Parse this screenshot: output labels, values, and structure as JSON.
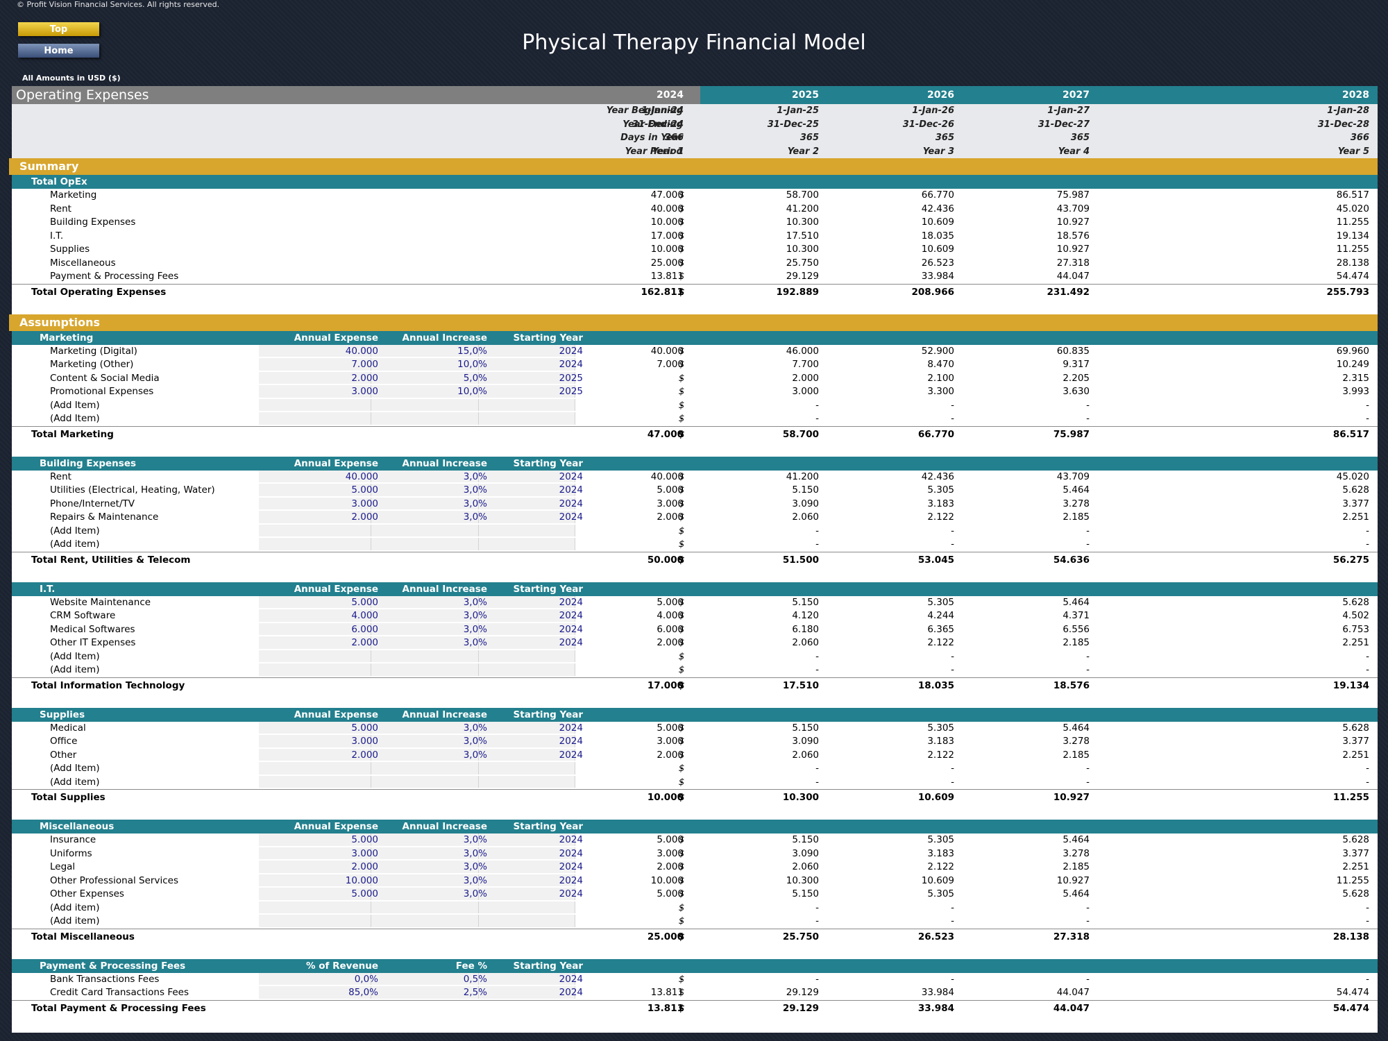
{
  "copyright": "© Profit Vision Financial Services. All rights reserved.",
  "nav": {
    "top_label": "Top",
    "home_label": "Home"
  },
  "page_title": "Physical Therapy Financial Model",
  "currency_note": "All Amounts in  USD ($)",
  "sheet_title": "Operating Expenses",
  "currency_symbol": "$",
  "years": [
    "2024",
    "2025",
    "2026",
    "2027",
    "2028"
  ],
  "header_rows": [
    {
      "label": "Year Beginning",
      "values": [
        "1-Jan-24",
        "1-Jan-25",
        "1-Jan-26",
        "1-Jan-27",
        "1-Jan-28"
      ]
    },
    {
      "label": "Year Ending",
      "values": [
        "31-Dec-24",
        "31-Dec-25",
        "31-Dec-26",
        "31-Dec-27",
        "31-Dec-28"
      ]
    },
    {
      "label": "Days in Year",
      "values": [
        "366",
        "365",
        "365",
        "365",
        "366"
      ]
    },
    {
      "label": "Year Period",
      "values": [
        "Year 1",
        "Year 2",
        "Year 3",
        "Year 4",
        "Year 5"
      ]
    }
  ],
  "summary": {
    "band_label": "Summary",
    "group_label": "Total OpEx",
    "rows": [
      {
        "label": "Marketing",
        "values": [
          "47.000",
          "58.700",
          "66.770",
          "75.987",
          "86.517"
        ]
      },
      {
        "label": "Rent",
        "values": [
          "40.000",
          "41.200",
          "42.436",
          "43.709",
          "45.020"
        ]
      },
      {
        "label": "Building Expenses",
        "values": [
          "10.000",
          "10.300",
          "10.609",
          "10.927",
          "11.255"
        ]
      },
      {
        "label": "I.T.",
        "values": [
          "17.000",
          "17.510",
          "18.035",
          "18.576",
          "19.134"
        ]
      },
      {
        "label": "Supplies",
        "values": [
          "10.000",
          "10.300",
          "10.609",
          "10.927",
          "11.255"
        ]
      },
      {
        "label": "Miscellaneous",
        "values": [
          "25.000",
          "25.750",
          "26.523",
          "27.318",
          "28.138"
        ]
      },
      {
        "label": "Payment & Processing Fees",
        "values": [
          "13.811",
          "29.129",
          "33.984",
          "44.047",
          "54.474"
        ]
      }
    ],
    "total": {
      "label": "Total Operating Expenses",
      "values": [
        "162.811",
        "192.889",
        "208.966",
        "231.492",
        "255.793"
      ]
    }
  },
  "assumptions_label": "Assumptions",
  "sections": [
    {
      "title": "Marketing",
      "cols": [
        "Annual Expense",
        "Annual Increase",
        "Starting Year"
      ],
      "rows": [
        {
          "label": "Marketing (Digital)",
          "inputs": [
            "40.000",
            "15,0%",
            "2024"
          ],
          "values": [
            "40.000",
            "46.000",
            "52.900",
            "60.835",
            "69.960"
          ]
        },
        {
          "label": "Marketing (Other)",
          "inputs": [
            "7.000",
            "10,0%",
            "2024"
          ],
          "values": [
            "7.000",
            "7.700",
            "8.470",
            "9.317",
            "10.249"
          ]
        },
        {
          "label": "Content & Social Media",
          "inputs": [
            "2.000",
            "5,0%",
            "2025"
          ],
          "values": [
            "-",
            "2.000",
            "2.100",
            "2.205",
            "2.315"
          ]
        },
        {
          "label": "Promotional Expenses",
          "inputs": [
            "3.000",
            "10,0%",
            "2025"
          ],
          "values": [
            "-",
            "3.000",
            "3.300",
            "3.630",
            "3.993"
          ]
        },
        {
          "label": "(Add Item)",
          "inputs": [
            "",
            "",
            ""
          ],
          "values": [
            "-",
            "-",
            "-",
            "-",
            "-"
          ]
        },
        {
          "label": "(Add Item)",
          "inputs": [
            "",
            "",
            ""
          ],
          "values": [
            "-",
            "-",
            "-",
            "-",
            "-"
          ]
        }
      ],
      "total": {
        "label": "Total Marketing",
        "values": [
          "47.000",
          "58.700",
          "66.770",
          "75.987",
          "86.517"
        ]
      }
    },
    {
      "title": "Building Expenses",
      "cols": [
        "Annual Expense",
        "Annual Increase",
        "Starting Year"
      ],
      "rows": [
        {
          "label": "Rent",
          "inputs": [
            "40.000",
            "3,0%",
            "2024"
          ],
          "values": [
            "40.000",
            "41.200",
            "42.436",
            "43.709",
            "45.020"
          ]
        },
        {
          "label": "Utilities (Electrical, Heating, Water)",
          "inputs": [
            "5.000",
            "3,0%",
            "2024"
          ],
          "values": [
            "5.000",
            "5.150",
            "5.305",
            "5.464",
            "5.628"
          ]
        },
        {
          "label": "Phone/Internet/TV",
          "inputs": [
            "3.000",
            "3,0%",
            "2024"
          ],
          "values": [
            "3.000",
            "3.090",
            "3.183",
            "3.278",
            "3.377"
          ]
        },
        {
          "label": "Repairs & Maintenance",
          "inputs": [
            "2.000",
            "3,0%",
            "2024"
          ],
          "values": [
            "2.000",
            "2.060",
            "2.122",
            "2.185",
            "2.251"
          ]
        },
        {
          "label": "(Add Item)",
          "inputs": [
            "",
            "",
            ""
          ],
          "values": [
            "-",
            "-",
            "-",
            "-",
            "-"
          ]
        },
        {
          "label": "(Add item)",
          "inputs": [
            "",
            "",
            ""
          ],
          "values": [
            "-",
            "-",
            "-",
            "-",
            "-"
          ]
        }
      ],
      "total": {
        "label": "Total Rent, Utilities & Telecom",
        "values": [
          "50.000",
          "51.500",
          "53.045",
          "54.636",
          "56.275"
        ]
      }
    },
    {
      "title": "I.T.",
      "cols": [
        "Annual Expense",
        "Annual Increase",
        "Starting Year"
      ],
      "rows": [
        {
          "label": "Website Maintenance",
          "inputs": [
            "5.000",
            "3,0%",
            "2024"
          ],
          "values": [
            "5.000",
            "5.150",
            "5.305",
            "5.464",
            "5.628"
          ]
        },
        {
          "label": "CRM Software",
          "inputs": [
            "4.000",
            "3,0%",
            "2024"
          ],
          "values": [
            "4.000",
            "4.120",
            "4.244",
            "4.371",
            "4.502"
          ]
        },
        {
          "label": "Medical Softwares",
          "inputs": [
            "6.000",
            "3,0%",
            "2024"
          ],
          "values": [
            "6.000",
            "6.180",
            "6.365",
            "6.556",
            "6.753"
          ]
        },
        {
          "label": "Other IT Expenses",
          "inputs": [
            "2.000",
            "3,0%",
            "2024"
          ],
          "values": [
            "2.000",
            "2.060",
            "2.122",
            "2.185",
            "2.251"
          ]
        },
        {
          "label": "(Add Item)",
          "inputs": [
            "",
            "",
            ""
          ],
          "values": [
            "-",
            "-",
            "-",
            "-",
            "-"
          ]
        },
        {
          "label": "(Add item)",
          "inputs": [
            "",
            "",
            ""
          ],
          "values": [
            "-",
            "-",
            "-",
            "-",
            "-"
          ]
        }
      ],
      "total": {
        "label": "Total Information Technology",
        "values": [
          "17.000",
          "17.510",
          "18.035",
          "18.576",
          "19.134"
        ]
      }
    },
    {
      "title": "Supplies",
      "cols": [
        "Annual Expense",
        "Annual Increase",
        "Starting Year"
      ],
      "rows": [
        {
          "label": "Medical",
          "inputs": [
            "5.000",
            "3,0%",
            "2024"
          ],
          "values": [
            "5.000",
            "5.150",
            "5.305",
            "5.464",
            "5.628"
          ]
        },
        {
          "label": "Office",
          "inputs": [
            "3.000",
            "3,0%",
            "2024"
          ],
          "values": [
            "3.000",
            "3.090",
            "3.183",
            "3.278",
            "3.377"
          ]
        },
        {
          "label": "Other",
          "inputs": [
            "2.000",
            "3,0%",
            "2024"
          ],
          "values": [
            "2.000",
            "2.060",
            "2.122",
            "2.185",
            "2.251"
          ]
        },
        {
          "label": "(Add Item)",
          "inputs": [
            "",
            "",
            ""
          ],
          "values": [
            "-",
            "-",
            "-",
            "-",
            "-"
          ]
        },
        {
          "label": "(Add item)",
          "inputs": [
            "",
            "",
            ""
          ],
          "values": [
            "-",
            "-",
            "-",
            "-",
            "-"
          ]
        }
      ],
      "total": {
        "label": "Total Supplies",
        "values": [
          "10.000",
          "10.300",
          "10.609",
          "10.927",
          "11.255"
        ]
      }
    },
    {
      "title": "Miscellaneous",
      "cols": [
        "Annual Expense",
        "Annual Increase",
        "Starting Year"
      ],
      "rows": [
        {
          "label": "Insurance",
          "inputs": [
            "5.000",
            "3,0%",
            "2024"
          ],
          "values": [
            "5.000",
            "5.150",
            "5.305",
            "5.464",
            "5.628"
          ]
        },
        {
          "label": "Uniforms",
          "inputs": [
            "3.000",
            "3,0%",
            "2024"
          ],
          "values": [
            "3.000",
            "3.090",
            "3.183",
            "3.278",
            "3.377"
          ]
        },
        {
          "label": "Legal",
          "inputs": [
            "2.000",
            "3,0%",
            "2024"
          ],
          "values": [
            "2.000",
            "2.060",
            "2.122",
            "2.185",
            "2.251"
          ]
        },
        {
          "label": "Other Professional Services",
          "inputs": [
            "10.000",
            "3,0%",
            "2024"
          ],
          "values": [
            "10.000",
            "10.300",
            "10.609",
            "10.927",
            "11.255"
          ]
        },
        {
          "label": "Other Expenses",
          "inputs": [
            "5.000",
            "3,0%",
            "2024"
          ],
          "values": [
            "5.000",
            "5.150",
            "5.305",
            "5.464",
            "5.628"
          ]
        },
        {
          "label": "(Add item)",
          "inputs": [
            "",
            "",
            ""
          ],
          "values": [
            "-",
            "-",
            "-",
            "-",
            "-"
          ]
        },
        {
          "label": "(Add item)",
          "inputs": [
            "",
            "",
            ""
          ],
          "values": [
            "-",
            "-",
            "-",
            "-",
            "-"
          ]
        }
      ],
      "total": {
        "label": "Total Miscellaneous",
        "values": [
          "25.000",
          "25.750",
          "26.523",
          "27.318",
          "28.138"
        ]
      }
    },
    {
      "title": "Payment & Processing Fees",
      "cols": [
        "% of Revenue",
        "Fee %",
        "Starting Year"
      ],
      "rows": [
        {
          "label": "Bank Transactions Fees",
          "inputs": [
            "0,0%",
            "0,5%",
            "2024"
          ],
          "values": [
            "-",
            "-",
            "-",
            "-",
            "-"
          ]
        },
        {
          "label": "Credit Card Transactions Fees",
          "inputs": [
            "85,0%",
            "2,5%",
            "2024"
          ],
          "values": [
            "13.811",
            "29.129",
            "33.984",
            "44.047",
            "54.474"
          ]
        }
      ],
      "total": {
        "label": "Total Payment & Processing Fees",
        "values": [
          "13.811",
          "29.129",
          "33.984",
          "44.047",
          "54.474"
        ]
      }
    }
  ]
}
